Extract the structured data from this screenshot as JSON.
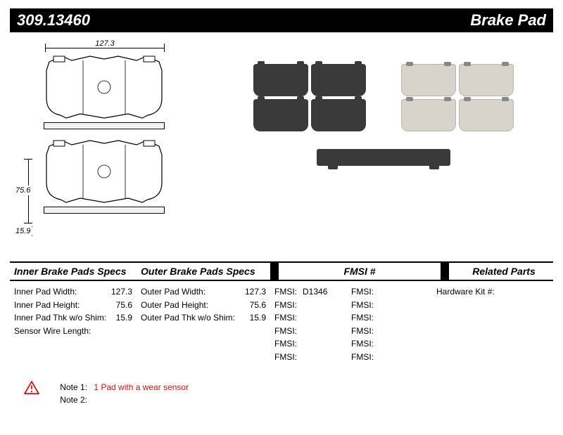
{
  "header": {
    "part_number": "309.13460",
    "title": "Brake Pad"
  },
  "dimensions": {
    "width_label": "127.3",
    "height_label": "75.6",
    "thickness_label": "15.9"
  },
  "spec_headers": {
    "inner": "Inner Brake Pads Specs",
    "outer": "Outer Brake Pads Specs",
    "fmsi": "FMSI #",
    "related": "Related Parts"
  },
  "inner_specs": [
    {
      "k": "Inner Pad Width:",
      "v": "127.3"
    },
    {
      "k": "Inner Pad Height:",
      "v": "75.6"
    },
    {
      "k": "Inner Pad Thk w/o Shim:",
      "v": "15.9"
    },
    {
      "k": "Sensor Wire Length:",
      "v": ""
    }
  ],
  "outer_specs": [
    {
      "k": "Outer Pad Width:",
      "v": "127.3"
    },
    {
      "k": "Outer Pad Height:",
      "v": "75.6"
    },
    {
      "k": "Outer Pad Thk w/o Shim:",
      "v": "15.9"
    }
  ],
  "fmsi": {
    "label": "FMSI:",
    "colA": [
      "D1346",
      "",
      "",
      "",
      "",
      ""
    ],
    "colB": [
      "",
      "",
      "",
      "",
      "",
      ""
    ]
  },
  "related": [
    {
      "k": "Hardware Kit #:",
      "v": ""
    }
  ],
  "notes": {
    "label1": "Note 1:",
    "text1": "1 Pad with a wear sensor",
    "label2": "Note 2:",
    "text2": ""
  }
}
